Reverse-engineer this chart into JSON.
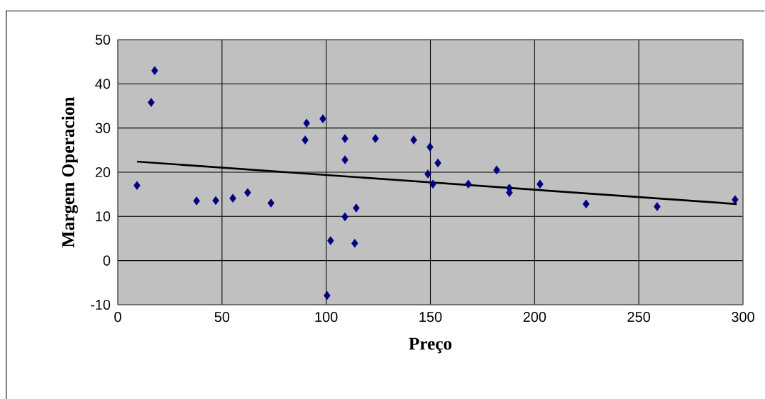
{
  "chart_data": {
    "type": "scatter",
    "xlabel": "Preço",
    "ylabel": "Margem Operacion",
    "xlim": [
      0,
      300
    ],
    "ylim": [
      -10,
      50
    ],
    "xticks": [
      0,
      50,
      100,
      150,
      200,
      250,
      300
    ],
    "yticks": [
      -10,
      0,
      10,
      20,
      30,
      40,
      50
    ],
    "grid": true,
    "marker": "diamond",
    "series": [
      {
        "color": "#000080",
        "x": [
          9.2,
          16,
          17.7,
          37.8,
          47,
          55.2,
          62.3,
          73.5,
          89.9,
          90.6,
          98.4,
          100.4,
          102.1,
          109,
          109,
          109,
          114.4,
          113.7,
          123.6,
          142,
          149.8,
          148.8,
          151.2,
          153.6,
          168.2,
          181.8,
          187.9,
          187.9,
          202.6,
          224.7,
          258.8,
          296.2
        ],
        "values": [
          17.0,
          35.8,
          43,
          13.5,
          13.6,
          14.1,
          15.4,
          13.0,
          27.3,
          31.1,
          32.1,
          -7.9,
          4.5,
          27.6,
          22.8,
          9.9,
          11.9,
          3.9,
          27.6,
          27.3,
          25.7,
          19.6,
          17.3,
          22.1,
          17.3,
          20.5,
          16.4,
          15.4,
          17.3,
          12.8,
          12.2,
          13.8
        ]
      },
      {
        "type": "line",
        "color": "#000000",
        "marker": "none",
        "line_style": "solid",
        "x": [
          9.2,
          297
        ],
        "values": [
          22.4,
          12.8
        ]
      }
    ]
  }
}
